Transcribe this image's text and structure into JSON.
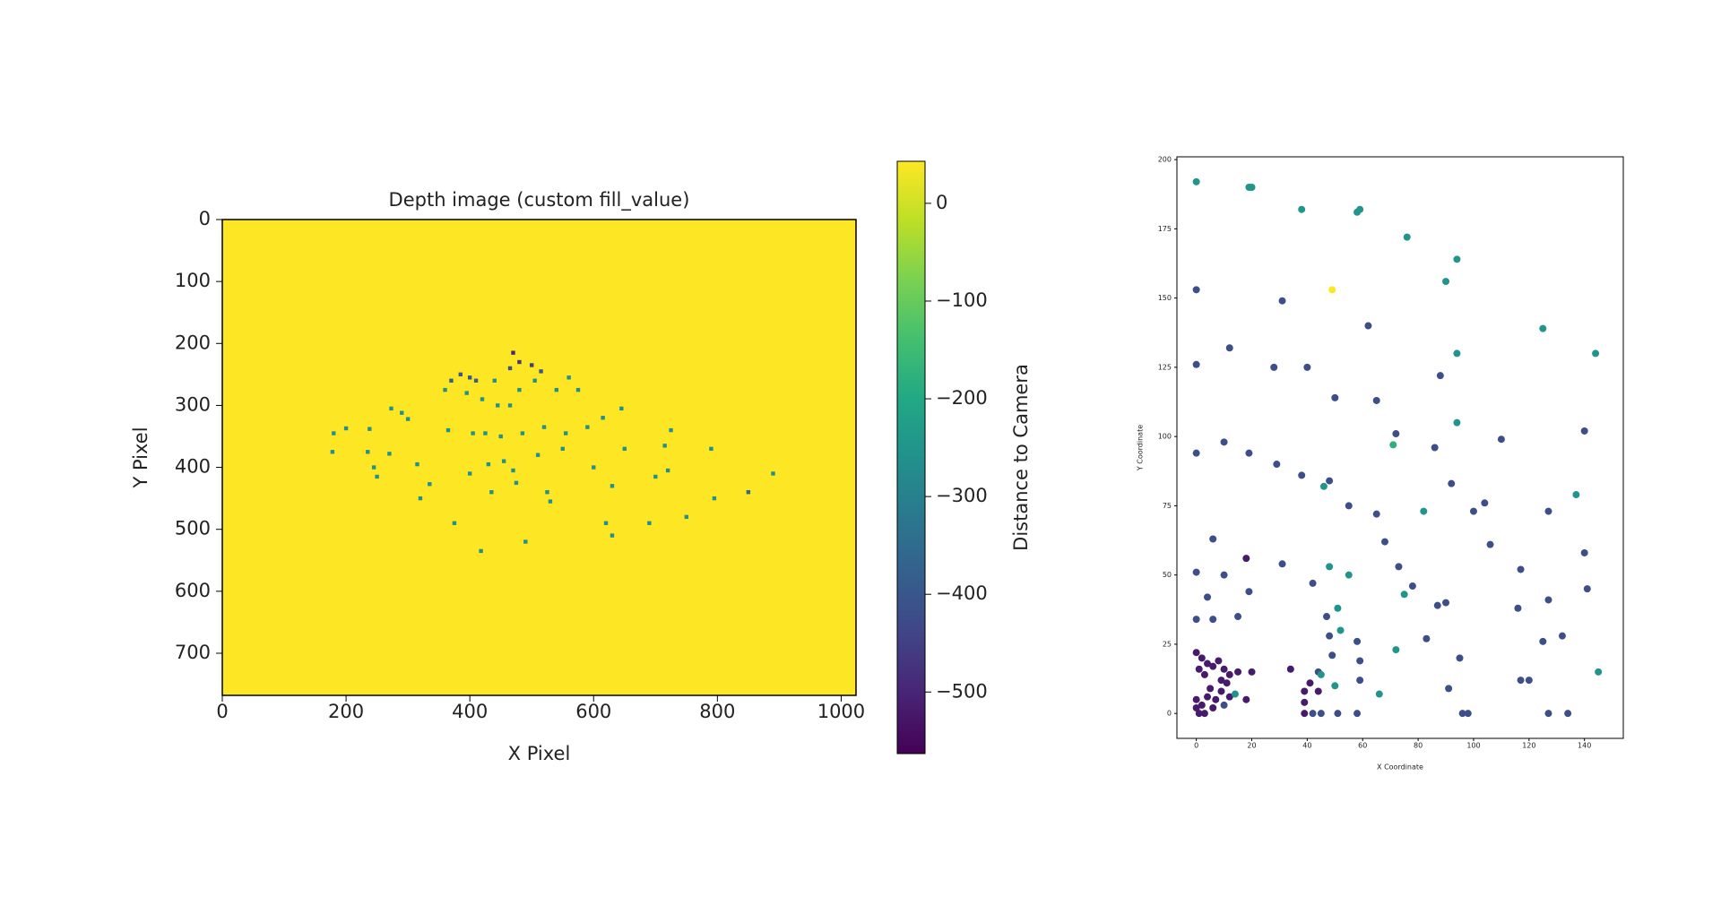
{
  "chart_data": [
    {
      "type": "scatter",
      "title": "Depth image (custom fill_value)",
      "xlabel": "X Pixel",
      "ylabel": "Y Pixel",
      "xlim": [
        0,
        1024
      ],
      "ylim": [
        768,
        0
      ],
      "xticks": [
        0,
        200,
        400,
        600,
        800,
        1000
      ],
      "yticks": [
        0,
        100,
        200,
        300,
        400,
        500,
        600,
        700
      ],
      "background": "#fde725",
      "cmap": "viridis",
      "colorbar": {
        "label": "Distance to Camera",
        "lim": [
          -563,
          43
        ],
        "ticks": [
          0,
          {
            "value": -100,
            "label": "−100"
          },
          {
            "value": -200,
            "label": "−200"
          },
          {
            "value": -300,
            "label": "−300"
          },
          {
            "value": -400,
            "label": "−400"
          },
          {
            "value": -500,
            "label": "−500"
          }
        ]
      },
      "points": [
        {
          "x": 180,
          "y": 345,
          "c": -260
        },
        {
          "x": 178,
          "y": 375,
          "c": -260
        },
        {
          "x": 200,
          "y": 337,
          "c": -260
        },
        {
          "x": 238,
          "y": 338,
          "c": -260
        },
        {
          "x": 235,
          "y": 375,
          "c": -260
        },
        {
          "x": 245,
          "y": 400,
          "c": -260
        },
        {
          "x": 250,
          "y": 415,
          "c": -260
        },
        {
          "x": 273,
          "y": 305,
          "c": -260
        },
        {
          "x": 270,
          "y": 378,
          "c": -260
        },
        {
          "x": 290,
          "y": 312,
          "c": -260
        },
        {
          "x": 300,
          "y": 322,
          "c": -260
        },
        {
          "x": 315,
          "y": 395,
          "c": -260
        },
        {
          "x": 320,
          "y": 450,
          "c": -260
        },
        {
          "x": 335,
          "y": 427,
          "c": -260
        },
        {
          "x": 365,
          "y": 340,
          "c": -260
        },
        {
          "x": 360,
          "y": 275,
          "c": -260
        },
        {
          "x": 370,
          "y": 260,
          "c": -380
        },
        {
          "x": 375,
          "y": 490,
          "c": -260
        },
        {
          "x": 385,
          "y": 250,
          "c": -400
        },
        {
          "x": 395,
          "y": 280,
          "c": -260
        },
        {
          "x": 400,
          "y": 255,
          "c": -400
        },
        {
          "x": 410,
          "y": 260,
          "c": -380
        },
        {
          "x": 405,
          "y": 345,
          "c": -260
        },
        {
          "x": 400,
          "y": 410,
          "c": -260
        },
        {
          "x": 420,
          "y": 290,
          "c": -260
        },
        {
          "x": 425,
          "y": 345,
          "c": -260
        },
        {
          "x": 430,
          "y": 395,
          "c": -260
        },
        {
          "x": 435,
          "y": 440,
          "c": -260
        },
        {
          "x": 440,
          "y": 260,
          "c": -260
        },
        {
          "x": 445,
          "y": 300,
          "c": -260
        },
        {
          "x": 450,
          "y": 350,
          "c": -260
        },
        {
          "x": 455,
          "y": 390,
          "c": -260
        },
        {
          "x": 465,
          "y": 240,
          "c": -420
        },
        {
          "x": 470,
          "y": 215,
          "c": -500
        },
        {
          "x": 480,
          "y": 230,
          "c": -470
        },
        {
          "x": 465,
          "y": 300,
          "c": -260
        },
        {
          "x": 470,
          "y": 405,
          "c": -260
        },
        {
          "x": 475,
          "y": 425,
          "c": -260
        },
        {
          "x": 480,
          "y": 275,
          "c": -260
        },
        {
          "x": 485,
          "y": 345,
          "c": -260
        },
        {
          "x": 500,
          "y": 235,
          "c": -450
        },
        {
          "x": 505,
          "y": 260,
          "c": -260
        },
        {
          "x": 510,
          "y": 380,
          "c": -260
        },
        {
          "x": 515,
          "y": 245,
          "c": -400
        },
        {
          "x": 520,
          "y": 335,
          "c": -260
        },
        {
          "x": 525,
          "y": 440,
          "c": -260
        },
        {
          "x": 530,
          "y": 455,
          "c": -260
        },
        {
          "x": 540,
          "y": 275,
          "c": -260
        },
        {
          "x": 550,
          "y": 370,
          "c": -260
        },
        {
          "x": 555,
          "y": 345,
          "c": -260
        },
        {
          "x": 560,
          "y": 255,
          "c": -260
        },
        {
          "x": 575,
          "y": 275,
          "c": -260
        },
        {
          "x": 590,
          "y": 335,
          "c": -260
        },
        {
          "x": 600,
          "y": 400,
          "c": -260
        },
        {
          "x": 615,
          "y": 320,
          "c": -260
        },
        {
          "x": 620,
          "y": 490,
          "c": -260
        },
        {
          "x": 630,
          "y": 430,
          "c": -260
        },
        {
          "x": 645,
          "y": 305,
          "c": -260
        },
        {
          "x": 650,
          "y": 370,
          "c": -260
        },
        {
          "x": 690,
          "y": 490,
          "c": -260
        },
        {
          "x": 700,
          "y": 415,
          "c": -260
        },
        {
          "x": 715,
          "y": 365,
          "c": -260
        },
        {
          "x": 720,
          "y": 405,
          "c": -260
        },
        {
          "x": 725,
          "y": 340,
          "c": -260
        },
        {
          "x": 750,
          "y": 480,
          "c": -260
        },
        {
          "x": 790,
          "y": 370,
          "c": -260
        },
        {
          "x": 795,
          "y": 450,
          "c": -260
        },
        {
          "x": 850,
          "y": 440,
          "c": -350
        },
        {
          "x": 890,
          "y": 410,
          "c": -260
        },
        {
          "x": 418,
          "y": 535,
          "c": -260
        },
        {
          "x": 490,
          "y": 520,
          "c": -260
        },
        {
          "x": 630,
          "y": 510,
          "c": -260
        }
      ]
    },
    {
      "type": "scatter",
      "xlabel": "X Coordinate",
      "ylabel": "Y Coordinate",
      "xlim": [
        -7,
        154
      ],
      "ylim": [
        -9,
        201
      ],
      "xticks": [
        0,
        20,
        40,
        60,
        80,
        100,
        120,
        140
      ],
      "yticks": [
        0,
        25,
        50,
        75,
        100,
        125,
        150,
        175,
        200
      ],
      "cmap": "viridis",
      "clim": [
        -563,
        43
      ],
      "points": [
        {
          "x": 0,
          "y": 192,
          "c": -250
        },
        {
          "x": 19,
          "y": 190,
          "c": -250
        },
        {
          "x": 20,
          "y": 190,
          "c": -250
        },
        {
          "x": 38,
          "y": 182,
          "c": -250
        },
        {
          "x": 58,
          "y": 181,
          "c": -250
        },
        {
          "x": 59,
          "y": 182,
          "c": -250
        },
        {
          "x": 76,
          "y": 172,
          "c": -250
        },
        {
          "x": 94,
          "y": 164,
          "c": -250
        },
        {
          "x": 90,
          "y": 156,
          "c": -250
        },
        {
          "x": 0,
          "y": 153,
          "c": -420
        },
        {
          "x": 31,
          "y": 149,
          "c": -420
        },
        {
          "x": 49,
          "y": 153,
          "c": 40
        },
        {
          "x": 62,
          "y": 140,
          "c": -420
        },
        {
          "x": 125,
          "y": 139,
          "c": -250
        },
        {
          "x": 144,
          "y": 130,
          "c": -250
        },
        {
          "x": 94,
          "y": 130,
          "c": -250
        },
        {
          "x": 12,
          "y": 132,
          "c": -420
        },
        {
          "x": 0,
          "y": 126,
          "c": -420
        },
        {
          "x": 28,
          "y": 125,
          "c": -420
        },
        {
          "x": 40,
          "y": 125,
          "c": -420
        },
        {
          "x": 88,
          "y": 122,
          "c": -420
        },
        {
          "x": 50,
          "y": 114,
          "c": -420
        },
        {
          "x": 65,
          "y": 113,
          "c": -420
        },
        {
          "x": 94,
          "y": 105,
          "c": -250
        },
        {
          "x": 72,
          "y": 101,
          "c": -420
        },
        {
          "x": 71,
          "y": 97,
          "c": -180
        },
        {
          "x": 110,
          "y": 99,
          "c": -420
        },
        {
          "x": 140,
          "y": 102,
          "c": -420
        },
        {
          "x": 0,
          "y": 94,
          "c": -420
        },
        {
          "x": 10,
          "y": 98,
          "c": -420
        },
        {
          "x": 19,
          "y": 94,
          "c": -420
        },
        {
          "x": 29,
          "y": 90,
          "c": -420
        },
        {
          "x": 38,
          "y": 86,
          "c": -420
        },
        {
          "x": 48,
          "y": 84,
          "c": -420
        },
        {
          "x": 46,
          "y": 82,
          "c": -250
        },
        {
          "x": 86,
          "y": 96,
          "c": -420
        },
        {
          "x": 92,
          "y": 83,
          "c": -420
        },
        {
          "x": 137,
          "y": 79,
          "c": -250
        },
        {
          "x": 104,
          "y": 76,
          "c": -420
        },
        {
          "x": 100,
          "y": 73,
          "c": -420
        },
        {
          "x": 82,
          "y": 73,
          "c": -250
        },
        {
          "x": 127,
          "y": 73,
          "c": -420
        },
        {
          "x": 55,
          "y": 75,
          "c": -420
        },
        {
          "x": 65,
          "y": 72,
          "c": -420
        },
        {
          "x": 6,
          "y": 63,
          "c": -420
        },
        {
          "x": 68,
          "y": 62,
          "c": -420
        },
        {
          "x": 106,
          "y": 61,
          "c": -420
        },
        {
          "x": 140,
          "y": 58,
          "c": -420
        },
        {
          "x": 117,
          "y": 52,
          "c": -420
        },
        {
          "x": 0,
          "y": 51,
          "c": -420
        },
        {
          "x": 10,
          "y": 50,
          "c": -420
        },
        {
          "x": 31,
          "y": 54,
          "c": -420
        },
        {
          "x": 18,
          "y": 56,
          "c": -520
        },
        {
          "x": 48,
          "y": 53,
          "c": -250
        },
        {
          "x": 55,
          "y": 50,
          "c": -250
        },
        {
          "x": 73,
          "y": 53,
          "c": -420
        },
        {
          "x": 78,
          "y": 46,
          "c": -420
        },
        {
          "x": 42,
          "y": 47,
          "c": -420
        },
        {
          "x": 75,
          "y": 43,
          "c": -250
        },
        {
          "x": 4,
          "y": 42,
          "c": -420
        },
        {
          "x": 19,
          "y": 44,
          "c": -420
        },
        {
          "x": 141,
          "y": 45,
          "c": -420
        },
        {
          "x": 90,
          "y": 40,
          "c": -420
        },
        {
          "x": 87,
          "y": 39,
          "c": -420
        },
        {
          "x": 127,
          "y": 41,
          "c": -420
        },
        {
          "x": 116,
          "y": 38,
          "c": -420
        },
        {
          "x": 0,
          "y": 34,
          "c": -420
        },
        {
          "x": 6,
          "y": 34,
          "c": -420
        },
        {
          "x": 15,
          "y": 35,
          "c": -420
        },
        {
          "x": 51,
          "y": 38,
          "c": -250
        },
        {
          "x": 47,
          "y": 35,
          "c": -420
        },
        {
          "x": 52,
          "y": 30,
          "c": -250
        },
        {
          "x": 48,
          "y": 28,
          "c": -420
        },
        {
          "x": 58,
          "y": 26,
          "c": -420
        },
        {
          "x": 83,
          "y": 27,
          "c": -420
        },
        {
          "x": 125,
          "y": 26,
          "c": -420
        },
        {
          "x": 132,
          "y": 28,
          "c": -420
        },
        {
          "x": 72,
          "y": 23,
          "c": -250
        },
        {
          "x": 49,
          "y": 21,
          "c": -420
        },
        {
          "x": 59,
          "y": 19,
          "c": -420
        },
        {
          "x": 95,
          "y": 20,
          "c": -420
        },
        {
          "x": 145,
          "y": 15,
          "c": -250
        },
        {
          "x": 117,
          "y": 12,
          "c": -420
        },
        {
          "x": 120,
          "y": 12,
          "c": -420
        },
        {
          "x": 44,
          "y": 15,
          "c": -420
        },
        {
          "x": 34,
          "y": 16,
          "c": -520
        },
        {
          "x": 41,
          "y": 11,
          "c": -520
        },
        {
          "x": 59,
          "y": 12,
          "c": -420
        },
        {
          "x": 50,
          "y": 10,
          "c": -250
        },
        {
          "x": 44,
          "y": 8,
          "c": -520
        },
        {
          "x": 39,
          "y": 8,
          "c": -520
        },
        {
          "x": 45,
          "y": 14,
          "c": -250
        },
        {
          "x": 66,
          "y": 7,
          "c": -250
        },
        {
          "x": 91,
          "y": 9,
          "c": -420
        },
        {
          "x": 39,
          "y": 4,
          "c": -520
        },
        {
          "x": 42,
          "y": 0,
          "c": -420
        },
        {
          "x": 45,
          "y": 0,
          "c": -420
        },
        {
          "x": 51,
          "y": 0,
          "c": -420
        },
        {
          "x": 58,
          "y": 0,
          "c": -420
        },
        {
          "x": 39,
          "y": 0,
          "c": -520
        },
        {
          "x": 96,
          "y": 0,
          "c": -420
        },
        {
          "x": 98,
          "y": 0,
          "c": -420
        },
        {
          "x": 127,
          "y": 0,
          "c": -420
        },
        {
          "x": 134,
          "y": 0,
          "c": -420
        },
        {
          "x": 0,
          "y": 22,
          "c": -520
        },
        {
          "x": 2,
          "y": 20,
          "c": -520
        },
        {
          "x": 4,
          "y": 18,
          "c": -520
        },
        {
          "x": 1,
          "y": 16,
          "c": -520
        },
        {
          "x": 6,
          "y": 17,
          "c": -520
        },
        {
          "x": 8,
          "y": 19,
          "c": -520
        },
        {
          "x": 10,
          "y": 16,
          "c": -520
        },
        {
          "x": 12,
          "y": 14,
          "c": -520
        },
        {
          "x": 15,
          "y": 15,
          "c": -520
        },
        {
          "x": 20,
          "y": 15,
          "c": -520
        },
        {
          "x": 3,
          "y": 14,
          "c": -520
        },
        {
          "x": 9,
          "y": 12,
          "c": -520
        },
        {
          "x": 11,
          "y": 11,
          "c": -520
        },
        {
          "x": 0,
          "y": 5,
          "c": -520
        },
        {
          "x": 2,
          "y": 3,
          "c": -520
        },
        {
          "x": 4,
          "y": 6,
          "c": -520
        },
        {
          "x": 6,
          "y": 2,
          "c": -520
        },
        {
          "x": 3,
          "y": 0,
          "c": -520
        },
        {
          "x": 1,
          "y": 0,
          "c": -520
        },
        {
          "x": 7,
          "y": 5,
          "c": -520
        },
        {
          "x": 9,
          "y": 8,
          "c": -520
        },
        {
          "x": 12,
          "y": 6,
          "c": -520
        },
        {
          "x": 5,
          "y": 9,
          "c": -520
        },
        {
          "x": 0,
          "y": 2,
          "c": -520
        },
        {
          "x": 18,
          "y": 5,
          "c": -520
        },
        {
          "x": 14,
          "y": 7,
          "c": -250
        },
        {
          "x": 10,
          "y": 3,
          "c": -420
        }
      ]
    }
  ]
}
